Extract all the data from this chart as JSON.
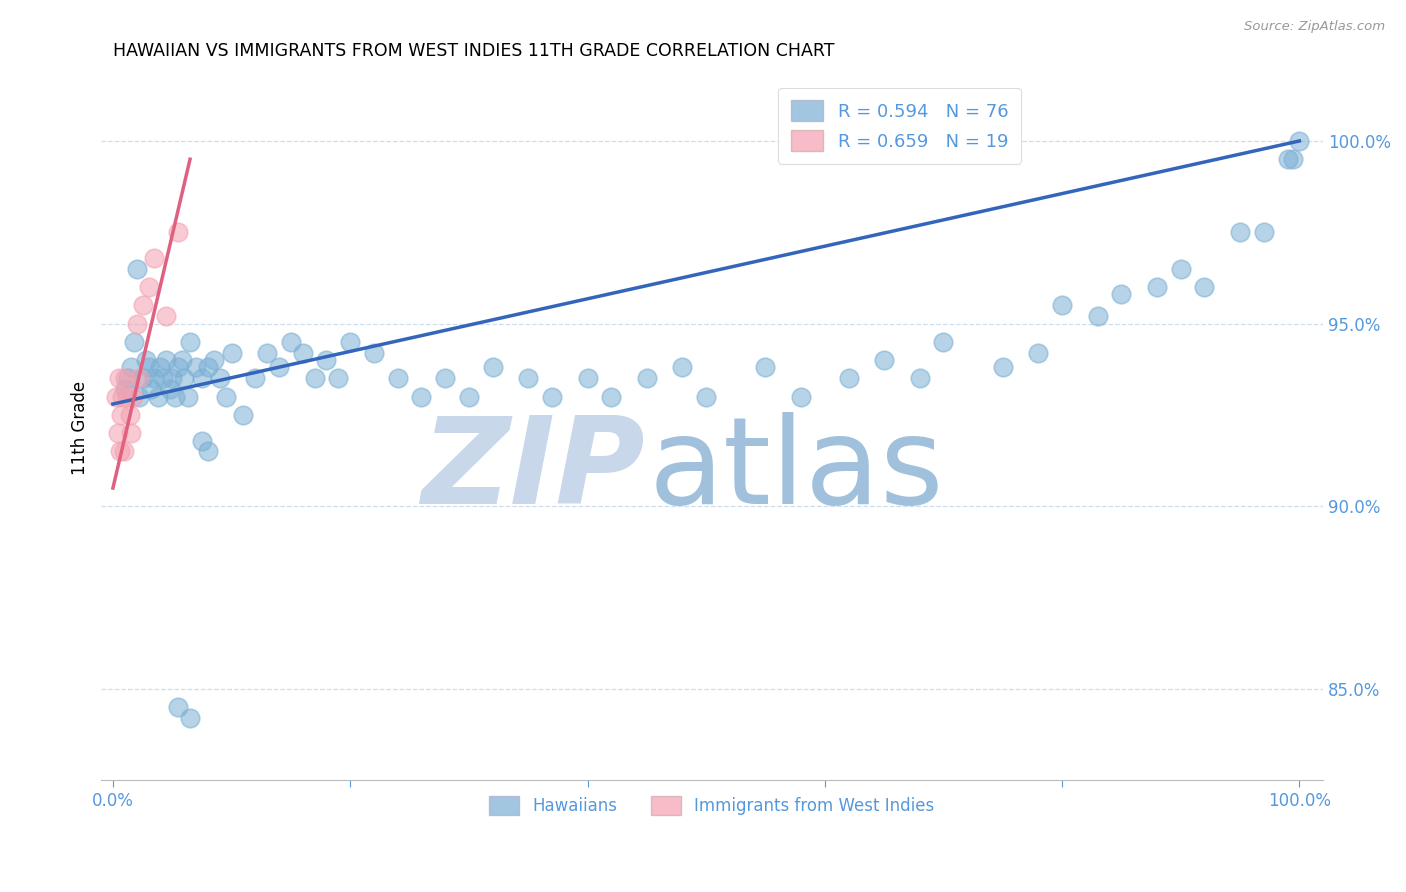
{
  "title": "HAWAIIAN VS IMMIGRANTS FROM WEST INDIES 11TH GRADE CORRELATION CHART",
  "source": "Source: ZipAtlas.com",
  "ylabel": "11th Grade",
  "x_ticks": [
    0.0,
    20.0,
    40.0,
    60.0,
    80.0,
    100.0
  ],
  "x_tick_labels": [
    "0.0%",
    "",
    "",
    "",
    "",
    "100.0%"
  ],
  "y_ticks": [
    85.0,
    90.0,
    95.0,
    100.0
  ],
  "y_tick_labels": [
    "85.0%",
    "90.0%",
    "95.0%",
    "100.0%"
  ],
  "xlim": [
    -1.0,
    102.0
  ],
  "ylim": [
    82.5,
    101.8
  ],
  "blue_color": "#7BAFD4",
  "pink_color": "#F4A0B0",
  "blue_line_color": "#3366BB",
  "pink_line_color": "#E06080",
  "axis_color": "#5599DD",
  "grid_color": "#CCDDEE",
  "legend1_label": "R = 0.594   N = 76",
  "legend2_label": "R = 0.659   N = 19",
  "bottom_legend1": "Hawaiians",
  "bottom_legend2": "Immigrants from West Indies",
  "blue_points_x": [
    1.0,
    1.3,
    1.5,
    1.8,
    2.0,
    2.2,
    2.5,
    2.8,
    3.0,
    3.2,
    3.5,
    3.8,
    4.0,
    4.2,
    4.5,
    4.8,
    5.0,
    5.2,
    5.5,
    5.8,
    6.0,
    6.3,
    6.5,
    7.0,
    7.5,
    8.0,
    8.5,
    9.0,
    9.5,
    10.0,
    11.0,
    12.0,
    13.0,
    14.0,
    15.0,
    16.0,
    17.0,
    18.0,
    19.0,
    20.0,
    22.0,
    24.0,
    26.0,
    28.0,
    30.0,
    32.0,
    35.0,
    37.0,
    40.0,
    42.0,
    45.0,
    48.0,
    50.0,
    55.0,
    58.0,
    62.0,
    65.0,
    68.0,
    70.0,
    75.0,
    78.0,
    80.0,
    83.0,
    85.0,
    88.0,
    90.0,
    92.0,
    95.0,
    97.0,
    99.0,
    99.5,
    100.0,
    5.5,
    6.5,
    7.5,
    8.0
  ],
  "blue_points_y": [
    93.2,
    93.5,
    93.8,
    94.5,
    96.5,
    93.0,
    93.5,
    94.0,
    93.8,
    93.2,
    93.5,
    93.0,
    93.8,
    93.5,
    94.0,
    93.2,
    93.5,
    93.0,
    93.8,
    94.0,
    93.5,
    93.0,
    94.5,
    93.8,
    93.5,
    93.8,
    94.0,
    93.5,
    93.0,
    94.2,
    92.5,
    93.5,
    94.2,
    93.8,
    94.5,
    94.2,
    93.5,
    94.0,
    93.5,
    94.5,
    94.2,
    93.5,
    93.0,
    93.5,
    93.0,
    93.8,
    93.5,
    93.0,
    93.5,
    93.0,
    93.5,
    93.8,
    93.0,
    93.8,
    93.0,
    93.5,
    94.0,
    93.5,
    94.5,
    93.8,
    94.2,
    95.5,
    95.2,
    95.8,
    96.0,
    96.5,
    96.0,
    97.5,
    97.5,
    99.5,
    99.5,
    100.0,
    84.5,
    84.2,
    91.8,
    91.5
  ],
  "pink_points_x": [
    0.3,
    0.4,
    0.5,
    0.6,
    0.7,
    0.8,
    0.9,
    1.0,
    1.2,
    1.4,
    1.5,
    1.7,
    2.0,
    2.2,
    2.5,
    3.0,
    3.5,
    4.5,
    5.5
  ],
  "pink_points_y": [
    93.0,
    92.0,
    93.5,
    91.5,
    92.5,
    93.0,
    91.5,
    93.5,
    93.0,
    92.5,
    92.0,
    93.0,
    95.0,
    93.5,
    95.5,
    96.0,
    96.8,
    95.2,
    97.5
  ],
  "blue_line_x": [
    0.0,
    100.0
  ],
  "blue_line_y": [
    92.8,
    100.0
  ],
  "pink_line_x": [
    0.0,
    6.5
  ],
  "pink_line_y": [
    90.5,
    99.5
  ]
}
